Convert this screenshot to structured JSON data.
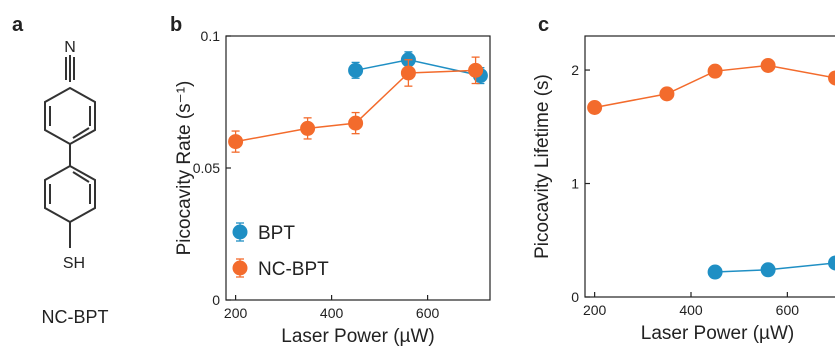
{
  "panels": {
    "a": {
      "letter": "a",
      "molecule_name": "NC-BPT",
      "top_atom": "N",
      "bottom_group": "SH"
    },
    "b": {
      "letter": "b"
    },
    "c": {
      "letter": "c"
    }
  },
  "colors": {
    "BPT": "#1f8fc4",
    "NC-BPT": "#f36b2c",
    "axis": "#222222"
  },
  "chart_data": [
    {
      "type": "scatter",
      "title": "",
      "xlabel": "Laser Power (µW)",
      "ylabel": "Picocavity Rate (s⁻¹)",
      "xlim": [
        180,
        730
      ],
      "ylim": [
        0,
        0.1
      ],
      "xticks": [
        200,
        400,
        600
      ],
      "yticks": [
        0,
        0.05,
        0.1
      ],
      "ytick_labels": [
        "0",
        "0.05",
        "0.1"
      ],
      "legend": {
        "placement": "bottom-left",
        "entries": [
          "BPT",
          "NC-BPT"
        ]
      },
      "series": [
        {
          "name": "BPT",
          "x": [
            450,
            560,
            710
          ],
          "y": [
            0.087,
            0.091,
            0.085
          ],
          "err": [
            0.003,
            0.003,
            0.003
          ]
        },
        {
          "name": "NC-BPT",
          "x": [
            200,
            350,
            450,
            560,
            700
          ],
          "y": [
            0.06,
            0.065,
            0.067,
            0.086,
            0.087
          ],
          "err": [
            0.004,
            0.004,
            0.004,
            0.005,
            0.005
          ]
        }
      ]
    },
    {
      "type": "line",
      "title": "",
      "xlabel": "Laser Power (µW)",
      "ylabel": "Picocavity Lifetime (s)",
      "xlim": [
        180,
        730
      ],
      "ylim": [
        0,
        2.3
      ],
      "xticks": [
        200,
        400,
        600
      ],
      "yticks": [
        0,
        1,
        2
      ],
      "ytick_labels": [
        "0",
        "1",
        "2"
      ],
      "series": [
        {
          "name": "NC-BPT",
          "x": [
            200,
            350,
            450,
            560,
            700
          ],
          "y": [
            1.67,
            1.79,
            1.99,
            2.04,
            1.93
          ]
        },
        {
          "name": "BPT",
          "x": [
            450,
            560,
            700
          ],
          "y": [
            0.22,
            0.24,
            0.3
          ]
        }
      ]
    }
  ]
}
